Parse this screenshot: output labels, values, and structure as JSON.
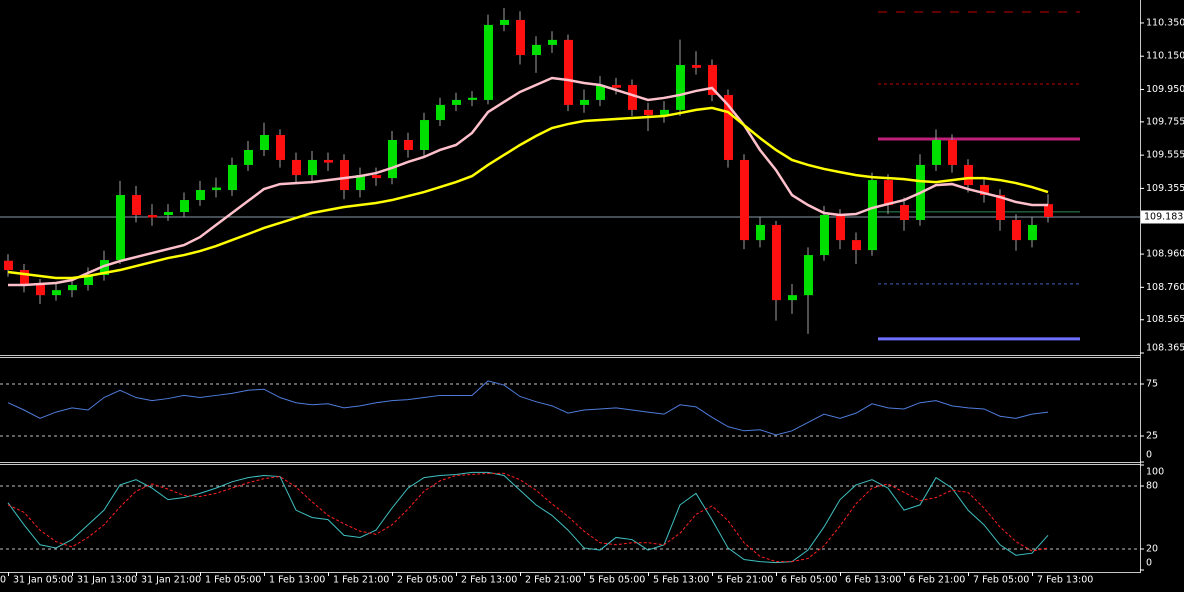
{
  "chart_data": [
    {
      "type": "candlestick",
      "categories": [
        "31 Jan 05:00",
        null,
        null,
        null,
        "31 Jan 13:00",
        null,
        null,
        null,
        "31 Jan 21:00",
        null,
        null,
        null,
        "1 Feb 05:00",
        null,
        null,
        null,
        "1 Feb 13:00",
        null,
        null,
        null,
        "1 Feb 21:00",
        null,
        null,
        null,
        "2 Feb 05:00",
        null,
        null,
        null,
        "2 Feb 13:00",
        null,
        null,
        null,
        "2 Feb 21:00",
        null,
        null,
        null,
        "5 Feb 05:00",
        null,
        null,
        null,
        "5 Feb 13:00",
        null,
        null,
        null,
        "5 Feb 21:00",
        null,
        null,
        null,
        "6 Feb 05:00",
        null,
        null,
        null,
        "6 Feb 13:00",
        null,
        null,
        null,
        "6 Feb 21:00",
        null,
        null,
        null,
        "7 Feb 05:00",
        null,
        null,
        null,
        "7 Feb 13:00",
        null
      ],
      "x_edge_label": "0",
      "open": [
        108.92,
        108.864,
        108.774,
        108.713,
        108.743,
        108.774,
        108.834,
        108.924,
        109.315,
        109.195,
        109.195,
        109.213,
        109.285,
        109.345,
        109.345,
        109.496,
        109.586,
        109.676,
        109.526,
        109.435,
        109.526,
        109.526,
        109.345,
        109.435,
        109.417,
        109.646,
        109.586,
        109.766,
        109.857,
        109.887,
        109.887,
        110.338,
        110.368,
        110.157,
        110.218,
        110.248,
        109.857,
        109.887,
        109.977,
        109.977,
        109.827,
        109.796,
        109.827,
        110.097,
        110.097,
        109.917,
        109.526,
        109.044,
        109.135,
        108.683,
        108.713,
        108.954,
        109.195,
        109.044,
        108.984,
        109.405,
        109.255,
        109.165,
        109.496,
        109.646,
        109.496,
        109.375,
        109.315,
        109.165,
        109.044,
        109.26
      ],
      "high": [
        108.96,
        108.9,
        108.81,
        108.78,
        108.82,
        108.88,
        108.98,
        109.4,
        109.37,
        109.26,
        109.26,
        109.33,
        109.4,
        109.42,
        109.54,
        109.64,
        109.75,
        109.71,
        109.57,
        109.58,
        109.57,
        109.56,
        109.48,
        109.48,
        109.7,
        109.69,
        109.81,
        109.9,
        109.93,
        109.94,
        110.4,
        110.44,
        110.42,
        110.27,
        110.3,
        110.28,
        109.95,
        110.03,
        110.02,
        110.01,
        109.87,
        109.88,
        110.25,
        110.18,
        110.13,
        109.95,
        109.56,
        109.18,
        109.16,
        108.78,
        109.0,
        109.25,
        109.23,
        109.09,
        109.45,
        109.44,
        109.3,
        109.56,
        109.71,
        109.68,
        109.53,
        109.41,
        109.35,
        109.2,
        109.18,
        109.32
      ],
      "low": [
        108.824,
        108.73,
        108.66,
        108.68,
        108.7,
        108.74,
        108.8,
        108.9,
        109.15,
        109.13,
        109.16,
        109.18,
        109.25,
        109.3,
        109.31,
        109.46,
        109.55,
        109.48,
        109.39,
        109.4,
        109.46,
        109.29,
        109.3,
        109.37,
        109.38,
        109.54,
        109.55,
        109.73,
        109.82,
        109.85,
        109.86,
        110.3,
        110.1,
        110.05,
        110.17,
        109.82,
        109.81,
        109.85,
        109.92,
        109.79,
        109.7,
        109.75,
        109.79,
        110.04,
        109.88,
        109.48,
        108.99,
        109.0,
        108.56,
        108.6,
        108.48,
        108.92,
        108.99,
        108.9,
        108.95,
        109.2,
        109.1,
        109.13,
        109.46,
        109.45,
        109.33,
        109.27,
        109.1,
        108.98,
        109.0,
        109.15
      ],
      "close": [
        108.864,
        108.774,
        108.713,
        108.743,
        108.774,
        108.834,
        108.924,
        109.315,
        109.195,
        109.18,
        109.213,
        109.285,
        109.345,
        109.36,
        109.496,
        109.586,
        109.676,
        109.526,
        109.435,
        109.526,
        109.51,
        109.345,
        109.435,
        109.417,
        109.646,
        109.586,
        109.766,
        109.857,
        109.887,
        109.9,
        110.338,
        110.368,
        110.157,
        110.218,
        110.248,
        109.857,
        109.887,
        109.977,
        109.96,
        109.827,
        109.796,
        109.827,
        110.097,
        110.08,
        109.917,
        109.526,
        109.044,
        109.135,
        108.683,
        108.713,
        108.954,
        109.195,
        109.044,
        108.984,
        109.405,
        109.255,
        109.165,
        109.496,
        109.646,
        109.496,
        109.375,
        109.315,
        109.165,
        109.044,
        109.135,
        109.183
      ],
      "up_color": "#00e000",
      "down_color": "#ff1010",
      "wick_color": "#a0a0a0",
      "series": [
        {
          "color": "#ffc0cb",
          "values": [
            108.774,
            108.774,
            108.78,
            108.786,
            108.804,
            108.846,
            108.888,
            108.918,
            108.942,
            108.966,
            108.99,
            109.014,
            109.062,
            109.135,
            109.207,
            109.279,
            109.351,
            109.381,
            109.387,
            109.393,
            109.405,
            109.417,
            109.429,
            109.447,
            109.478,
            109.514,
            109.544,
            109.586,
            109.616,
            109.688,
            109.814,
            109.875,
            109.935,
            109.977,
            110.019,
            110.007,
            109.989,
            109.977,
            109.947,
            109.917,
            109.887,
            109.899,
            109.917,
            109.941,
            109.959,
            109.857,
            109.736,
            109.586,
            109.465,
            109.315,
            109.255,
            109.207,
            109.195,
            109.201,
            109.237,
            109.261,
            109.285,
            109.327,
            109.375,
            109.381,
            109.351,
            109.327,
            109.303,
            109.273,
            109.255,
            109.255
          ]
        },
        {
          "color": "#ffff00",
          "values": [
            108.852,
            108.84,
            108.828,
            108.816,
            108.816,
            108.828,
            108.846,
            108.864,
            108.888,
            108.912,
            108.936,
            108.954,
            108.978,
            109.008,
            109.044,
            109.08,
            109.117,
            109.147,
            109.177,
            109.207,
            109.225,
            109.243,
            109.255,
            109.267,
            109.285,
            109.309,
            109.333,
            109.363,
            109.393,
            109.429,
            109.496,
            109.556,
            109.616,
            109.67,
            109.718,
            109.742,
            109.76,
            109.766,
            109.772,
            109.778,
            109.784,
            109.79,
            109.808,
            109.827,
            109.839,
            109.814,
            109.736,
            109.658,
            109.586,
            109.526,
            109.496,
            109.472,
            109.453,
            109.435,
            109.423,
            109.417,
            109.411,
            109.399,
            109.393,
            109.405,
            109.417,
            109.417,
            109.405,
            109.387,
            109.363,
            109.333
          ]
        }
      ],
      "ylim": [
        108.353,
        110.488
      ],
      "yticks": [
        {
          "value": 110.35,
          "label": "110.350"
        },
        {
          "value": 110.15,
          "label": "110.150"
        },
        {
          "value": 109.95,
          "label": "109.950"
        },
        {
          "value": 109.755,
          "label": "109.755"
        },
        {
          "value": 109.555,
          "label": "109.555"
        },
        {
          "value": 109.355,
          "label": "109.355"
        },
        {
          "value": 108.96,
          "label": "108.960"
        },
        {
          "value": 108.76,
          "label": "108.760"
        },
        {
          "value": 108.565,
          "label": "108.565"
        },
        {
          "value": 108.365,
          "label": "108.365"
        }
      ],
      "current_price": {
        "value": 109.183,
        "label": "109.183",
        "color": "#8a9aa8"
      },
      "levels": [
        {
          "value": 110.416,
          "color": "#c00000",
          "style": "dash"
        },
        {
          "value": 109.983,
          "color": "#c00000",
          "style": "dot"
        },
        {
          "value": 109.652,
          "color": "#c0207a",
          "style": "thick"
        },
        {
          "value": 109.214,
          "color": "#2e8b57",
          "style": "solid"
        },
        {
          "value": 108.781,
          "color": "#4060c0",
          "style": "dot"
        },
        {
          "value": 108.45,
          "color": "#7070ff",
          "style": "thick"
        }
      ]
    },
    {
      "type": "line",
      "series": [
        {
          "color": "#4f7cdc",
          "values": [
            57,
            50,
            42,
            48,
            52,
            50,
            62,
            69,
            62,
            59,
            61,
            64,
            62,
            64,
            66,
            69,
            70,
            62,
            57,
            55,
            56,
            52,
            54,
            57,
            59,
            60,
            62,
            64,
            64,
            64,
            78,
            74,
            63,
            58,
            54,
            47,
            50,
            51,
            52,
            50,
            48,
            46,
            55,
            53,
            43,
            34,
            30,
            31,
            26,
            30,
            38,
            46,
            42,
            47,
            56,
            52,
            51,
            57,
            59,
            54,
            52,
            51,
            44,
            42,
            46,
            48
          ]
        }
      ],
      "ylim": [
        0,
        100
      ],
      "yticks": [
        0,
        25,
        75
      ],
      "levels": [
        {
          "value": 25,
          "color": "#c0c0c0",
          "style": "dot"
        },
        {
          "value": 75,
          "color": "#c0c0c0",
          "style": "dot"
        }
      ]
    },
    {
      "type": "line",
      "series": [
        {
          "color": "#40c0c0",
          "values": [
            64,
            43,
            24,
            21,
            29,
            43,
            57,
            81,
            86,
            78,
            67,
            69,
            73,
            78,
            84,
            88,
            90,
            89,
            57,
            50,
            48,
            33,
            31,
            38,
            59,
            78,
            88,
            90,
            91,
            93,
            93,
            90,
            76,
            62,
            52,
            38,
            21,
            19,
            31,
            29,
            19,
            24,
            62,
            73,
            48,
            21,
            10,
            8,
            7,
            8,
            19,
            41,
            67,
            81,
            86,
            78,
            57,
            62,
            88,
            78,
            57,
            43,
            24,
            14,
            16,
            33
          ]
        },
        {
          "color": "#ff2020",
          "dash": true,
          "values": [
            62,
            55,
            38,
            27,
            22,
            31,
            43,
            60,
            75,
            82,
            77,
            71,
            70,
            73,
            78,
            83,
            87,
            89,
            79,
            65,
            52,
            44,
            37,
            34,
            43,
            58,
            75,
            85,
            90,
            91,
            92,
            92,
            86,
            76,
            63,
            51,
            37,
            26,
            24,
            26,
            26,
            24,
            35,
            53,
            61,
            47,
            26,
            13,
            8,
            8,
            11,
            23,
            42,
            63,
            78,
            82,
            74,
            66,
            69,
            76,
            74,
            59,
            41,
            27,
            18,
            21
          ]
        }
      ],
      "ylim": [
        0,
        100
      ],
      "yticks": [
        0,
        20,
        80,
        100
      ],
      "levels": [
        {
          "value": 20,
          "color": "#c0c0c0",
          "style": "dot"
        },
        {
          "value": 80,
          "color": "#c0c0c0",
          "style": "dot"
        }
      ]
    }
  ]
}
